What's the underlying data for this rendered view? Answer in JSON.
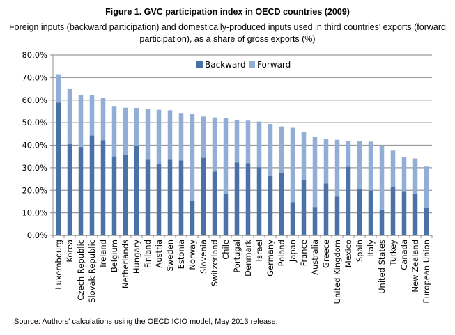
{
  "chart_data": {
    "type": "bar",
    "stacked": true,
    "title": "Figure 1. GVC participation index in OECD countries (2009)",
    "subtitle": "Foreign inputs (backward participation) and domestically-produced inputs used in third countries' exports (forward participation), as a share of gross exports (%)",
    "xlabel": "",
    "ylabel": "",
    "ylim": [
      0,
      80
    ],
    "yticks": [
      0,
      10,
      20,
      30,
      40,
      50,
      60,
      70,
      80
    ],
    "ytick_labels": [
      "0.0%",
      "10.0%",
      "20.0%",
      "30.0%",
      "40.0%",
      "50.0%",
      "60.0%",
      "70.0%",
      "80.0%"
    ],
    "grid": true,
    "legend_position": "top-center",
    "categories": [
      "Luxembourg",
      "Korea",
      "Czech Republic",
      "Slovak Republic",
      "Ireland",
      "Belgium",
      "Netherlands",
      "Hungary",
      "Finland",
      "Austria",
      "Sweden",
      "Estonia",
      "Norway",
      "Slovenia",
      "Switzerland",
      "Chile",
      "Portugal",
      "Denmark",
      "Israel",
      "Germany",
      "Poland",
      "Japan",
      "France",
      "Australia",
      "Greece",
      "United Kingdom",
      "Mexico",
      "Spain",
      "Italy",
      "United States",
      "Turkey",
      "Canada",
      "New Zealand",
      "European Union"
    ],
    "series": [
      {
        "name": "Backward",
        "color": "#4a72a8",
        "values": [
          58.9,
          40.5,
          39.2,
          44.3,
          42.2,
          35.0,
          35.8,
          39.9,
          33.5,
          31.5,
          33.5,
          33.2,
          15.3,
          34.4,
          28.3,
          18.6,
          32.3,
          32.0,
          30.2,
          26.5,
          27.7,
          14.7,
          24.7,
          12.6,
          23.0,
          17.2,
          30.4,
          20.5,
          19.9,
          11.3,
          21.5,
          19.6,
          18.4,
          12.4
        ]
      },
      {
        "name": "Forward",
        "color": "#93aed6",
        "values": [
          12.6,
          24.4,
          23.0,
          17.9,
          18.9,
          22.4,
          20.8,
          16.6,
          22.5,
          24.2,
          22.0,
          21.1,
          38.7,
          18.3,
          24.0,
          33.5,
          18.9,
          18.9,
          20.3,
          22.9,
          20.6,
          33.0,
          21.1,
          31.1,
          19.8,
          25.2,
          11.5,
          21.3,
          21.7,
          28.6,
          16.1,
          15.2,
          15.7,
          18.1
        ]
      }
    ],
    "totals": [
      71.5,
      64.9,
      62.2,
      62.2,
      61.1,
      57.4,
      56.6,
      56.5,
      56.0,
      55.7,
      55.5,
      54.3,
      54.0,
      52.7,
      52.3,
      52.1,
      51.2,
      50.9,
      50.5,
      49.4,
      48.3,
      47.7,
      45.8,
      43.7,
      42.8,
      42.4,
      41.9,
      41.8,
      41.6,
      39.9,
      37.6,
      34.8,
      34.1,
      30.5
    ],
    "source": "Source: Authors' calculations using the OECD ICIO model, May 2013 release."
  }
}
